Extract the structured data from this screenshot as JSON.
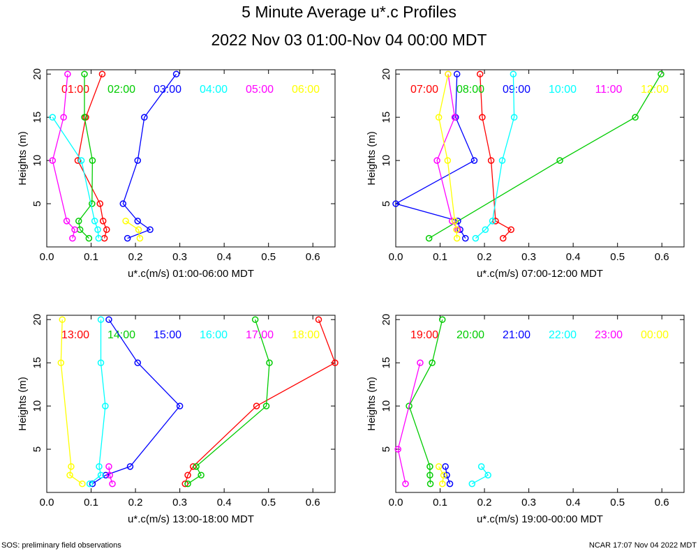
{
  "title": "5 Minute Average u*.c Profiles",
  "subtitle": "2022 Nov 03 01:00-Nov 04 00:00 MDT",
  "footer_left": "SOS: preliminary field observations",
  "footer_right": "NCAR 17:07 Nov 04 2022 MDT",
  "colors": [
    "#ff0000",
    "#00cc00",
    "#0000ff",
    "#00ffff",
    "#ff00ff",
    "#ffff00"
  ],
  "chart_data": [
    {
      "type": "scatter",
      "xlabel": "u*.c(m/s) 01:00-06:00 MDT",
      "ylabel": "Heights (m)",
      "xlim": [
        0,
        0.65
      ],
      "ylim": [
        0,
        20.5
      ],
      "xticks": [
        "0.0",
        "0.1",
        "0.2",
        "0.3",
        "0.4",
        "0.5",
        "0.6"
      ],
      "yticks": [
        "5",
        "10",
        "15",
        "20"
      ],
      "series": [
        {
          "name": "01:00",
          "points": [
            [
              0.13,
              1
            ],
            [
              0.135,
              2
            ],
            [
              0.127,
              3
            ],
            [
              0.12,
              5
            ],
            [
              0.07,
              10
            ],
            [
              0.088,
              15
            ],
            [
              0.125,
              20
            ]
          ]
        },
        {
          "name": "02:00",
          "points": [
            [
              0.095,
              1
            ],
            [
              0.075,
              2
            ],
            [
              0.072,
              3
            ],
            [
              0.102,
              5
            ],
            [
              0.103,
              10
            ],
            [
              0.085,
              15
            ],
            [
              0.085,
              20
            ]
          ]
        },
        {
          "name": "03:00",
          "points": [
            [
              0.182,
              1
            ],
            [
              0.233,
              2
            ],
            [
              0.205,
              3
            ],
            [
              0.172,
              5
            ],
            [
              0.205,
              10
            ],
            [
              0.22,
              15
            ],
            [
              0.292,
              20
            ]
          ]
        },
        {
          "name": "04:00",
          "points": [
            [
              0.117,
              1
            ],
            [
              0.115,
              2
            ],
            [
              0.108,
              3
            ],
            [
              0.078,
              10
            ],
            [
              0.013,
              15
            ]
          ]
        },
        {
          "name": "05:00",
          "points": [
            [
              0.058,
              1
            ],
            [
              0.063,
              2
            ],
            [
              0.045,
              3
            ],
            [
              0.013,
              10
            ],
            [
              0.038,
              15
            ],
            [
              0.047,
              20
            ]
          ]
        },
        {
          "name": "06:00",
          "points": [
            [
              0.21,
              1
            ],
            [
              0.207,
              2
            ],
            [
              0.178,
              3
            ]
          ]
        }
      ]
    },
    {
      "type": "scatter",
      "xlabel": "u*.c(m/s) 07:00-12:00 MDT",
      "ylabel": "Heights (m)",
      "xlim": [
        0,
        0.65
      ],
      "ylim": [
        0,
        20.5
      ],
      "xticks": [
        "0.0",
        "0.1",
        "0.2",
        "0.3",
        "0.4",
        "0.5",
        "0.6"
      ],
      "yticks": [
        "5",
        "10",
        "15",
        "20"
      ],
      "series": [
        {
          "name": "07:00",
          "points": [
            [
              0.242,
              1
            ],
            [
              0.26,
              2
            ],
            [
              0.225,
              3
            ],
            [
              0.215,
              10
            ],
            [
              0.195,
              15
            ],
            [
              0.19,
              20
            ]
          ]
        },
        {
          "name": "08:00",
          "points": [
            [
              0.075,
              1
            ],
            [
              0.37,
              10
            ],
            [
              0.54,
              15
            ],
            [
              0.598,
              20
            ]
          ]
        },
        {
          "name": "09:00",
          "points": [
            [
              0.157,
              1
            ],
            [
              0.145,
              2
            ],
            [
              0.14,
              3
            ],
            [
              0.0,
              5
            ],
            [
              0.177,
              10
            ],
            [
              0.135,
              15
            ],
            [
              0.138,
              20
            ]
          ]
        },
        {
          "name": "10:00",
          "points": [
            [
              0.18,
              1
            ],
            [
              0.202,
              2
            ],
            [
              0.218,
              3
            ],
            [
              0.24,
              10
            ],
            [
              0.267,
              15
            ],
            [
              0.265,
              20
            ]
          ]
        },
        {
          "name": "11:00",
          "points": [
            [
              0.14,
              2
            ],
            [
              0.127,
              3
            ],
            [
              0.093,
              10
            ],
            [
              0.133,
              15
            ],
            [
              0.118,
              20
            ]
          ]
        },
        {
          "name": "12:00",
          "points": [
            [
              0.138,
              1
            ],
            [
              0.137,
              2
            ],
            [
              0.133,
              3
            ],
            [
              0.117,
              10
            ],
            [
              0.097,
              15
            ],
            [
              0.118,
              20
            ]
          ]
        }
      ]
    },
    {
      "type": "scatter",
      "xlabel": "u*.c(m/s) 13:00-18:00 MDT",
      "ylabel": "Heights (m)",
      "xlim": [
        0,
        0.65
      ],
      "ylim": [
        0,
        20.5
      ],
      "xticks": [
        "0.0",
        "0.1",
        "0.2",
        "0.3",
        "0.4",
        "0.5",
        "0.6"
      ],
      "yticks": [
        "5",
        "10",
        "15",
        "20"
      ],
      "series": [
        {
          "name": "13:00",
          "points": [
            [
              0.312,
              1
            ],
            [
              0.318,
              2
            ],
            [
              0.33,
              3
            ],
            [
              0.473,
              10
            ],
            [
              0.65,
              15
            ],
            [
              0.613,
              20
            ]
          ]
        },
        {
          "name": "14:00",
          "points": [
            [
              0.318,
              1
            ],
            [
              0.348,
              2
            ],
            [
              0.337,
              3
            ],
            [
              0.495,
              10
            ],
            [
              0.502,
              15
            ],
            [
              0.47,
              20
            ]
          ]
        },
        {
          "name": "15:00",
          "points": [
            [
              0.103,
              1
            ],
            [
              0.133,
              2
            ],
            [
              0.188,
              3
            ],
            [
              0.3,
              10
            ],
            [
              0.205,
              15
            ],
            [
              0.14,
              20
            ]
          ]
        },
        {
          "name": "16:00",
          "points": [
            [
              0.097,
              1
            ],
            [
              0.122,
              2
            ],
            [
              0.118,
              3
            ],
            [
              0.132,
              10
            ],
            [
              0.122,
              15
            ],
            [
              0.122,
              20
            ]
          ]
        },
        {
          "name": "17:00",
          "points": [
            [
              0.148,
              1
            ],
            [
              0.142,
              2
            ],
            [
              0.14,
              3
            ]
          ]
        },
        {
          "name": "18:00",
          "points": [
            [
              0.08,
              1
            ],
            [
              0.052,
              2
            ],
            [
              0.055,
              3
            ],
            [
              0.032,
              15
            ],
            [
              0.035,
              20
            ]
          ]
        }
      ]
    },
    {
      "type": "scatter",
      "xlabel": "u*.c(m/s) 19:00-00:00 MDT",
      "ylabel": "Heights (m)",
      "xlim": [
        0,
        0.65
      ],
      "ylim": [
        0,
        20.5
      ],
      "xticks": [
        "0.0",
        "0.1",
        "0.2",
        "0.3",
        "0.4",
        "0.5",
        "0.6"
      ],
      "yticks": [
        "5",
        "10",
        "15",
        "20"
      ],
      "series": [
        {
          "name": "19:00",
          "points": []
        },
        {
          "name": "20:00",
          "points": [
            [
              0.078,
              1
            ],
            [
              0.077,
              2
            ],
            [
              0.077,
              3
            ],
            [
              0.03,
              10
            ],
            [
              0.082,
              15
            ],
            [
              0.105,
              20
            ]
          ]
        },
        {
          "name": "21:00",
          "points": [
            [
              0.122,
              1
            ],
            [
              0.115,
              2
            ],
            [
              0.112,
              3
            ]
          ]
        },
        {
          "name": "22:00",
          "points": [
            [
              0.172,
              1
            ],
            [
              0.208,
              2
            ],
            [
              0.193,
              3
            ]
          ]
        },
        {
          "name": "23:00",
          "points": [
            [
              0.022,
              1
            ],
            [
              0.005,
              5
            ],
            [
              0.055,
              15
            ]
          ]
        },
        {
          "name": "00:00",
          "points": [
            [
              0.105,
              1
            ],
            [
              0.108,
              2
            ],
            [
              0.097,
              3
            ]
          ]
        }
      ]
    }
  ]
}
